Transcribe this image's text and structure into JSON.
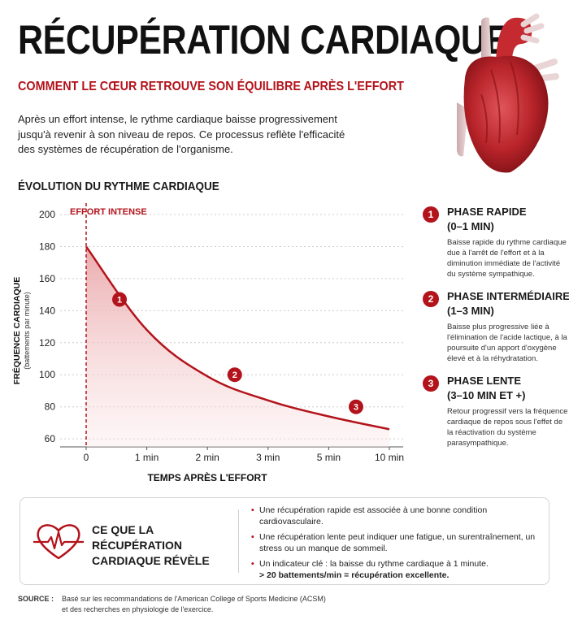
{
  "header": {
    "title": "RÉCUPÉRATION CARDIAQUE",
    "subtitle": "COMMENT LE CŒUR RETROUVE SON ÉQUILIBRE APRÈS L'EFFORT",
    "intro": "Après un effort intense, le rythme cardiaque baisse progressivement jusqu'à revenir à son niveau de repos. Ce processus reflète l'efficacité des systèmes de récupération de l'organisme."
  },
  "colors": {
    "accent": "#b3131b",
    "fill": "#f6d5d6",
    "grid": "#cccccc",
    "text": "#1a1a1a"
  },
  "chart_title": "ÉVOLUTION DU RYTHME CARDIAQUE",
  "chart_data": {
    "type": "area",
    "ylabel": "FRÉQUENCE CARDIAQUE",
    "ylabel_unit": "(battements par minute)",
    "xlabel": "TEMPS APRÈS L'EFFORT",
    "x_ticks": [
      "0",
      "1 min",
      "2 min",
      "3 min",
      "5 min",
      "10 min"
    ],
    "y_ticks": [
      60,
      80,
      100,
      120,
      140,
      160,
      180,
      200
    ],
    "ylim": [
      55,
      200
    ],
    "grid": true,
    "series": [
      {
        "x": [
          "0",
          "1 min",
          "2 min",
          "3 min",
          "5 min",
          "10 min"
        ],
        "values": [
          180,
          128,
          99,
          84,
          74,
          66
        ]
      }
    ],
    "annotations": [
      {
        "label": "EFFORT INTENSE",
        "x": "0"
      }
    ],
    "markers": [
      {
        "label": "1",
        "x": 0.55,
        "y": 147
      },
      {
        "label": "2",
        "x": 2.45,
        "y": 100
      },
      {
        "label": "3",
        "x": 4.45,
        "y": 80
      }
    ]
  },
  "phases": [
    {
      "num": "1",
      "title": "PHASE RAPIDE",
      "range": "(0–1 MIN)",
      "desc": "Baisse rapide du rythme cardiaque due à l'arrêt de l'effort et à la diminution immédiate de l'activité du système sympathique."
    },
    {
      "num": "2",
      "title": "PHASE INTERMÉDIAIRE",
      "range": "(1–3 MIN)",
      "desc": "Baisse plus progressive liée à l'élimination de l'acide lactique, à la poursuite d'un apport d'oxygène élevé et à la réhydratation."
    },
    {
      "num": "3",
      "title": "PHASE LENTE",
      "range": "(3–10 MIN ET +)",
      "desc": "Retour progressif vers la fréquence cardiaque de repos sous l'effet de la réactivation du système parasympathique."
    }
  ],
  "box": {
    "title": "CE QUE LA RÉCUPÉRATION CARDIAQUE RÉVÈLE",
    "icon": "heart-pulse-icon",
    "items": [
      "Une récupération rapide est associée à une bonne condition cardiovasculaire.",
      "Une récupération lente peut indiquer une fatigue, un surentraînement, un stress ou un manque de sommeil.",
      "Un indicateur clé : la baisse du rythme cardiaque à 1 minute."
    ],
    "highlight": "> 20 battements/min = récupération excellente."
  },
  "source": {
    "label": "SOURCE :",
    "text": "Basé sur les recommandations de l'American College of Sports Medicine (ACSM) et des recherches en physiologie de l'exercice."
  }
}
